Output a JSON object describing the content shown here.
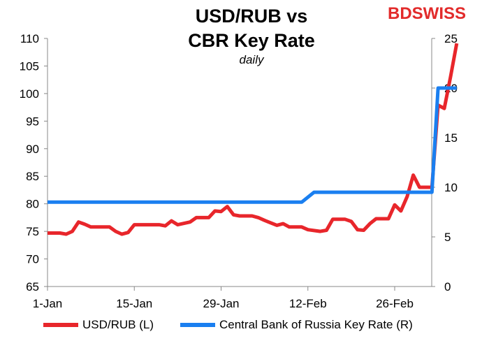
{
  "header": {
    "title_line1": "USD/RUB vs",
    "title_line2": "CBR Key Rate",
    "subtitle": "daily",
    "logo": "BDSWISS"
  },
  "colors": {
    "usd_rub": "#e8262b",
    "key_rate": "#1a7ff0",
    "axis": "#888888",
    "logo": "#e22b2b"
  },
  "legend": {
    "usd_rub": "USD/RUB (L)",
    "key_rate": "Central Bank of Russia Key Rate (R)"
  },
  "chart_data": {
    "type": "line",
    "title": "USD/RUB vs CBR Key Rate",
    "subtitle": "daily",
    "x_type": "date",
    "x_ticks": [
      "1-Jan",
      "15-Jan",
      "29-Jan",
      "12-Feb",
      "26-Feb"
    ],
    "x_range": [
      "2022-01-01",
      "2022-03-04"
    ],
    "y_left": {
      "range": [
        65,
        110
      ],
      "step": 5,
      "ticks": [
        65,
        70,
        75,
        80,
        85,
        90,
        95,
        100,
        105,
        110
      ]
    },
    "y_right": {
      "range": [
        0,
        25
      ],
      "step": 5,
      "ticks": [
        0,
        5,
        10,
        15,
        20,
        25
      ]
    },
    "grid": false,
    "legend_position": "bottom",
    "series": [
      {
        "name": "USD/RUB (L)",
        "axis": "left",
        "points": [
          [
            "2022-01-01",
            74.7
          ],
          [
            "2022-01-03",
            74.7
          ],
          [
            "2022-01-04",
            74.5
          ],
          [
            "2022-01-05",
            75.0
          ],
          [
            "2022-01-06",
            76.7
          ],
          [
            "2022-01-07",
            76.3
          ],
          [
            "2022-01-08",
            75.8
          ],
          [
            "2022-01-10",
            75.8
          ],
          [
            "2022-01-11",
            75.8
          ],
          [
            "2022-01-12",
            75.0
          ],
          [
            "2022-01-13",
            74.5
          ],
          [
            "2022-01-14",
            74.8
          ],
          [
            "2022-01-15",
            76.2
          ],
          [
            "2022-01-17",
            76.2
          ],
          [
            "2022-01-18",
            76.2
          ],
          [
            "2022-01-19",
            76.2
          ],
          [
            "2022-01-20",
            76.0
          ],
          [
            "2022-01-21",
            76.9
          ],
          [
            "2022-01-22",
            76.2
          ],
          [
            "2022-01-24",
            76.7
          ],
          [
            "2022-01-25",
            77.5
          ],
          [
            "2022-01-26",
            77.5
          ],
          [
            "2022-01-27",
            77.5
          ],
          [
            "2022-01-28",
            78.7
          ],
          [
            "2022-01-29",
            78.6
          ],
          [
            "2022-01-30",
            79.5
          ],
          [
            "2022-01-31",
            78.0
          ],
          [
            "2022-02-01",
            77.8
          ],
          [
            "2022-02-02",
            77.8
          ],
          [
            "2022-02-03",
            77.8
          ],
          [
            "2022-02-04",
            77.5
          ],
          [
            "2022-02-05",
            77.0
          ],
          [
            "2022-02-07",
            76.1
          ],
          [
            "2022-02-08",
            76.4
          ],
          [
            "2022-02-09",
            75.8
          ],
          [
            "2022-02-10",
            75.8
          ],
          [
            "2022-02-11",
            75.8
          ],
          [
            "2022-02-12",
            75.3
          ],
          [
            "2022-02-14",
            75.0
          ],
          [
            "2022-02-15",
            75.2
          ],
          [
            "2022-02-16",
            77.2
          ],
          [
            "2022-02-17",
            77.2
          ],
          [
            "2022-02-18",
            77.2
          ],
          [
            "2022-02-19",
            76.8
          ],
          [
            "2022-02-20",
            75.3
          ],
          [
            "2022-02-21",
            75.2
          ],
          [
            "2022-02-22",
            76.4
          ],
          [
            "2022-02-23",
            77.3
          ],
          [
            "2022-02-24",
            77.3
          ],
          [
            "2022-02-25",
            77.3
          ],
          [
            "2022-02-26",
            79.8
          ],
          [
            "2022-02-27",
            78.7
          ],
          [
            "2022-02-28",
            81.3
          ],
          [
            "2022-03-01",
            85.2
          ],
          [
            "2022-03-02",
            83.0
          ],
          [
            "2022-03-03",
            83.0
          ],
          [
            "2022-03-04",
            83.0
          ],
          [
            "2022-03-05",
            97.9
          ],
          [
            "2022-03-06",
            97.3
          ],
          [
            "2022-03-07",
            103.0
          ],
          [
            "2022-03-08",
            109.1
          ]
        ]
      },
      {
        "name": "Central Bank of Russia Key Rate (R)",
        "axis": "right",
        "points": [
          [
            "2022-01-01",
            8.5
          ],
          [
            "2022-02-11",
            8.5
          ],
          [
            "2022-02-13",
            9.5
          ],
          [
            "2022-03-04",
            9.5
          ],
          [
            "2022-03-05",
            20.0
          ],
          [
            "2022-03-08",
            20.0
          ]
        ]
      }
    ]
  }
}
